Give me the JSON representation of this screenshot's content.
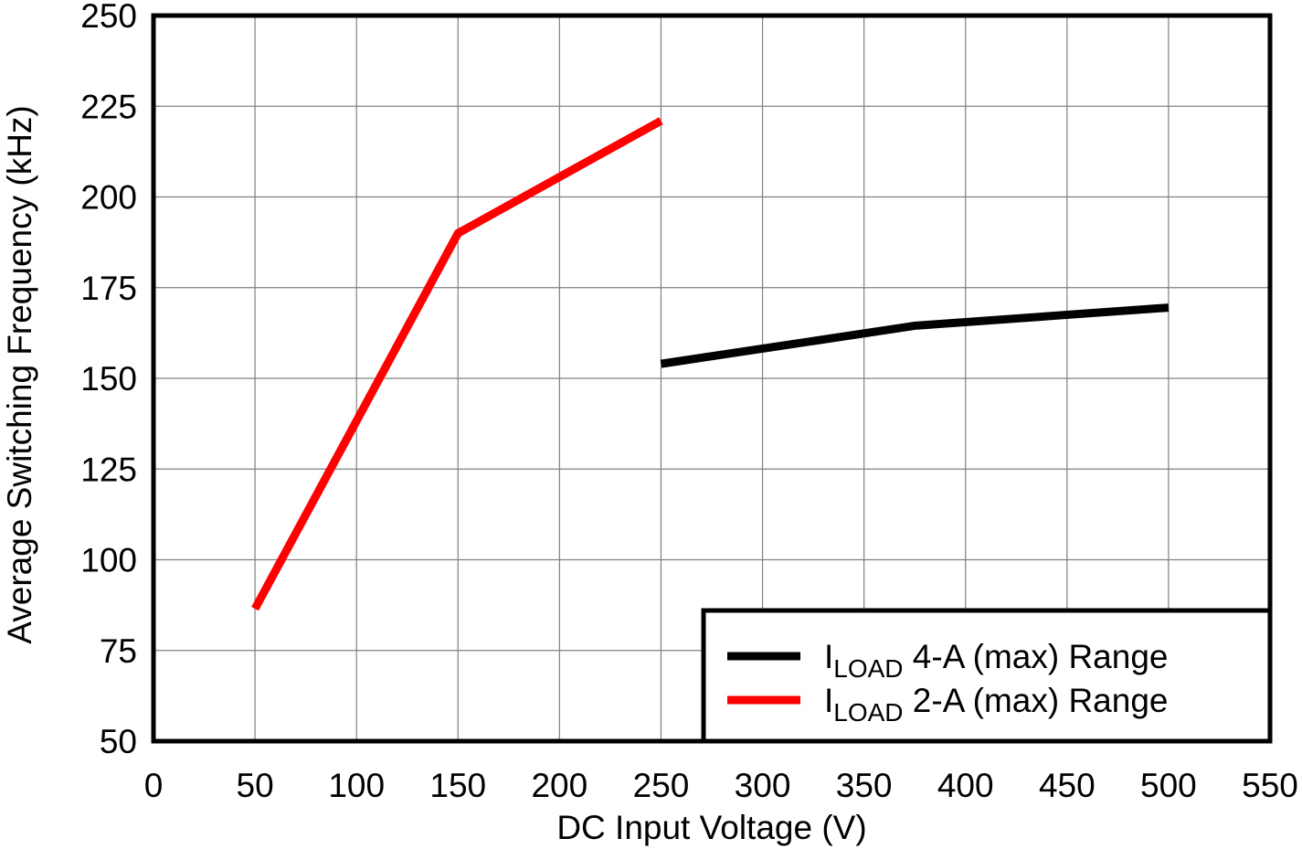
{
  "chart_data": {
    "type": "line",
    "xlabel": "DC Input Voltage (V)",
    "ylabel": "Average Switching Frequency (kHz)",
    "xlim": [
      0,
      550
    ],
    "xticks": [
      0,
      50,
      100,
      150,
      200,
      250,
      300,
      350,
      400,
      450,
      500,
      550
    ],
    "ylim": [
      50,
      250
    ],
    "yticks": [
      50,
      75,
      100,
      125,
      150,
      175,
      200,
      225,
      250
    ],
    "grid": true,
    "legend": "lower right",
    "series": [
      {
        "name": "ILOAD 4-A (max) Range",
        "color": "#000000",
        "x": [
          250,
          375,
          500
        ],
        "values": [
          154,
          164.5,
          169.5
        ]
      },
      {
        "name": "ILOAD 2-A (max) Range",
        "color": "#ff0000",
        "x": [
          50,
          150,
          250
        ],
        "values": [
          86.5,
          190,
          221
        ]
      }
    ]
  }
}
